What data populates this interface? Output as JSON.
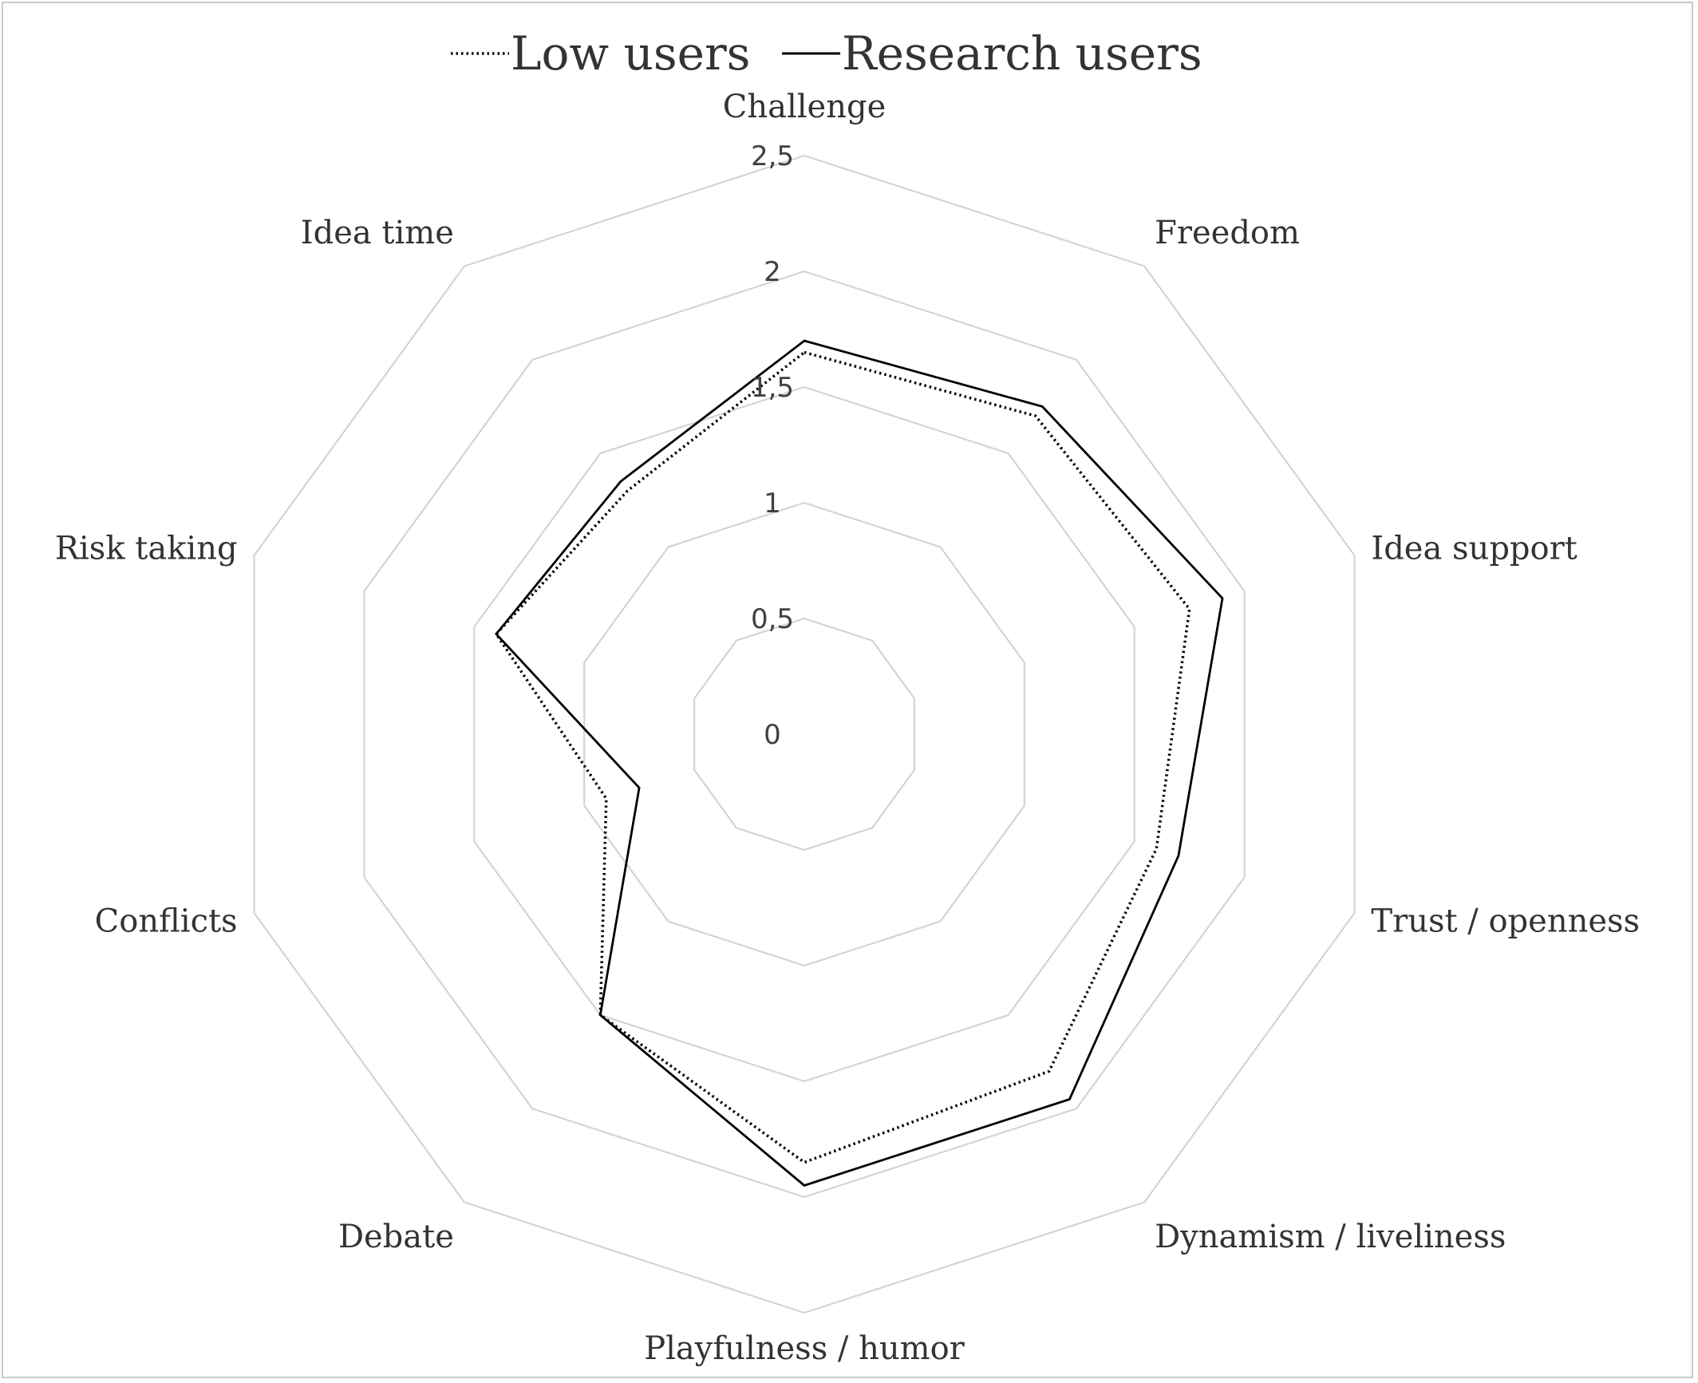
{
  "chart_data": {
    "type": "radar",
    "title": "",
    "axes": [
      "Challenge",
      "Freedom",
      "Idea support",
      "Trust / openness",
      "Dynamism / liveliness",
      "Playfulness / humor",
      "Debate",
      "Conflicts",
      "Risk taking",
      "Idea time"
    ],
    "ticks": [
      "0",
      "0,5",
      "1",
      "1,5",
      "2",
      "2,5"
    ],
    "rmax": 2.5,
    "grid": true,
    "legend_position": "top",
    "series": [
      {
        "name": "Low users",
        "style": "dotted",
        "color": "#000000",
        "values": [
          1.65,
          1.7,
          1.75,
          1.6,
          1.8,
          1.85,
          1.5,
          0.9,
          1.4,
          1.3
        ]
      },
      {
        "name": "Research users",
        "style": "solid",
        "color": "#000000",
        "values": [
          1.7,
          1.75,
          1.9,
          1.7,
          1.95,
          1.95,
          1.5,
          0.75,
          1.4,
          1.35
        ]
      }
    ]
  }
}
